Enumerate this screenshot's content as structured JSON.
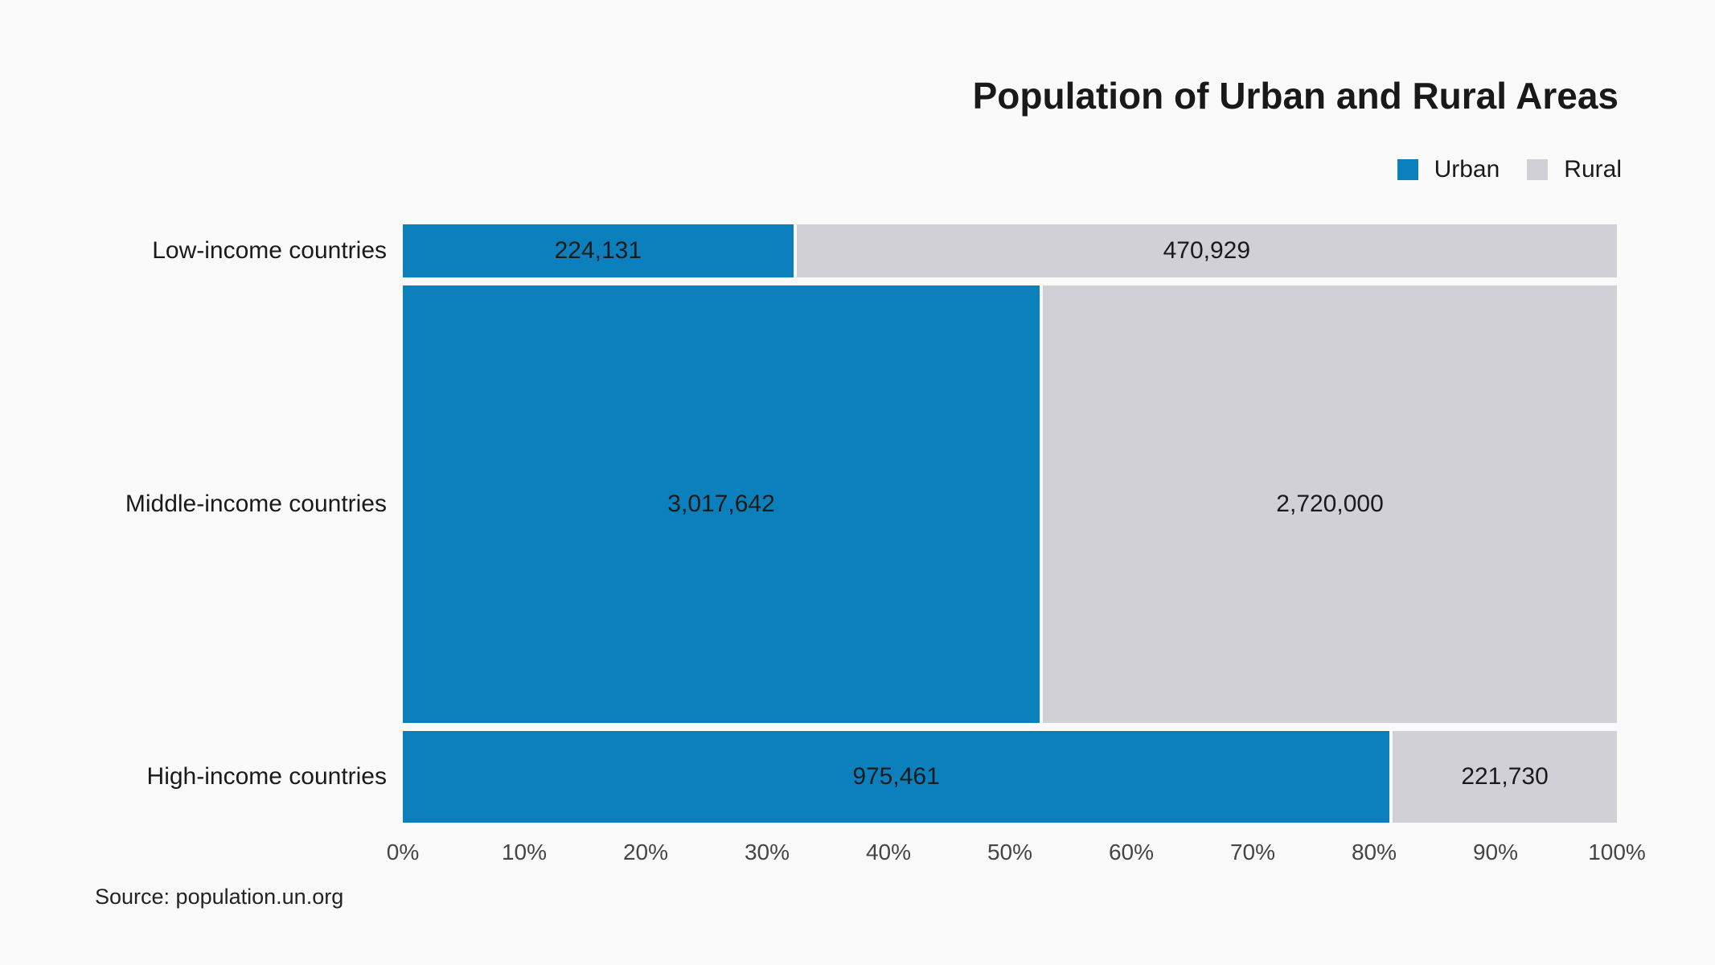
{
  "title": "Population of Urban and Rural Areas",
  "source_note": "Source: population.un.org",
  "colors": {
    "urban": "#0b80bc",
    "rural": "#d1d0d7",
    "background": "#fafafa",
    "text": "#1a1a1a",
    "axis_text": "#454545"
  },
  "legend": {
    "position": "top-right",
    "items": [
      {
        "name": "Urban",
        "color": "#0b80bc"
      },
      {
        "name": "Rural",
        "color": "#d1d0d7"
      }
    ]
  },
  "chart_data": {
    "type": "bar",
    "variant": "mosaic: horizontal 100%-stacked bars, row height proportional to row total",
    "title": "Population of Urban and Rural Areas",
    "categories": [
      "Low-income countries",
      "Middle-income countries",
      "High-income countries"
    ],
    "series": [
      {
        "name": "Urban",
        "color": "#0b80bc",
        "values": [
          224131,
          3017642,
          975461
        ],
        "labels": [
          "224,131",
          "3,017,642",
          "975,461"
        ]
      },
      {
        "name": "Rural",
        "color": "#d1d0d7",
        "values": [
          470929,
          2720000,
          221730
        ],
        "labels": [
          "470,929",
          "2,720,000",
          "221,730"
        ]
      }
    ],
    "row_totals": [
      695060,
      5737642,
      1197191
    ],
    "urban_share_percent": [
      32.2,
      52.6,
      81.5
    ],
    "x_axis": {
      "ticks": [
        "0%",
        "10%",
        "20%",
        "30%",
        "40%",
        "50%",
        "60%",
        "70%",
        "80%",
        "90%",
        "100%"
      ],
      "range": [
        0,
        100
      ],
      "unit": "percent of row total"
    },
    "grid": false,
    "legend_position": "top-right",
    "xlabel": "",
    "ylabel": ""
  }
}
